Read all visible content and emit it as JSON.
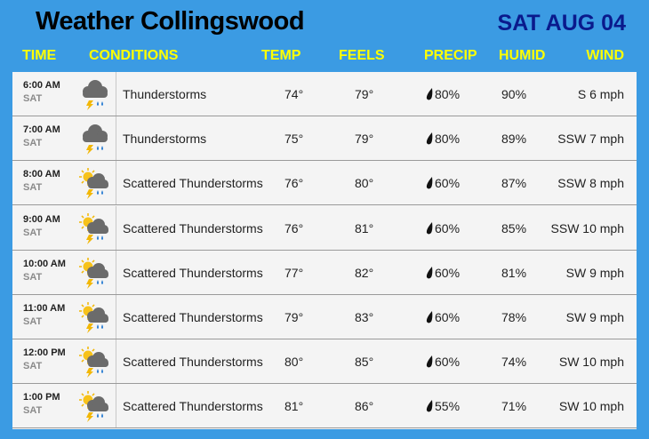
{
  "header": {
    "title": "Weather Collingswood",
    "date": "SAT AUG 04"
  },
  "table": {
    "columns": [
      "TIME",
      "CONDITIONS",
      "TEMP",
      "FEELS",
      "PRECIP",
      "HUMID",
      "WIND"
    ],
    "rows": [
      {
        "time": "6:00 AM",
        "day": "SAT",
        "condition": "Thunderstorms",
        "temp": "74°",
        "feels": "79°",
        "precip": "80%",
        "humid": "90%",
        "wind": "S 6 mph"
      },
      {
        "time": "7:00 AM",
        "day": "SAT",
        "condition": "Thunderstorms",
        "temp": "75°",
        "feels": "79°",
        "precip": "80%",
        "humid": "89%",
        "wind": "SSW 7 mph"
      },
      {
        "time": "8:00 AM",
        "day": "SAT",
        "condition": "Scattered Thunderstorms",
        "temp": "76°",
        "feels": "80°",
        "precip": "60%",
        "humid": "87%",
        "wind": "SSW 8 mph"
      },
      {
        "time": "9:00 AM",
        "day": "SAT",
        "condition": "Scattered Thunderstorms",
        "temp": "76°",
        "feels": "81°",
        "precip": "60%",
        "humid": "85%",
        "wind": "SSW 10 mph"
      },
      {
        "time": "10:00 AM",
        "day": "SAT",
        "condition": "Scattered Thunderstorms",
        "temp": "77°",
        "feels": "82°",
        "precip": "60%",
        "humid": "81%",
        "wind": "SW 9 mph"
      },
      {
        "time": "11:00 AM",
        "day": "SAT",
        "condition": "Scattered Thunderstorms",
        "temp": "79°",
        "feels": "83°",
        "precip": "60%",
        "humid": "78%",
        "wind": "SW 9 mph"
      },
      {
        "time": "12:00 PM",
        "day": "SAT",
        "condition": "Scattered Thunderstorms",
        "temp": "80°",
        "feels": "85°",
        "precip": "60%",
        "humid": "74%",
        "wind": "SW 10 mph"
      },
      {
        "time": "1:00 PM",
        "day": "SAT",
        "condition": "Scattered Thunderstorms",
        "temp": "81°",
        "feels": "86°",
        "precip": "55%",
        "humid": "71%",
        "wind": "SW 10 mph"
      }
    ]
  }
}
